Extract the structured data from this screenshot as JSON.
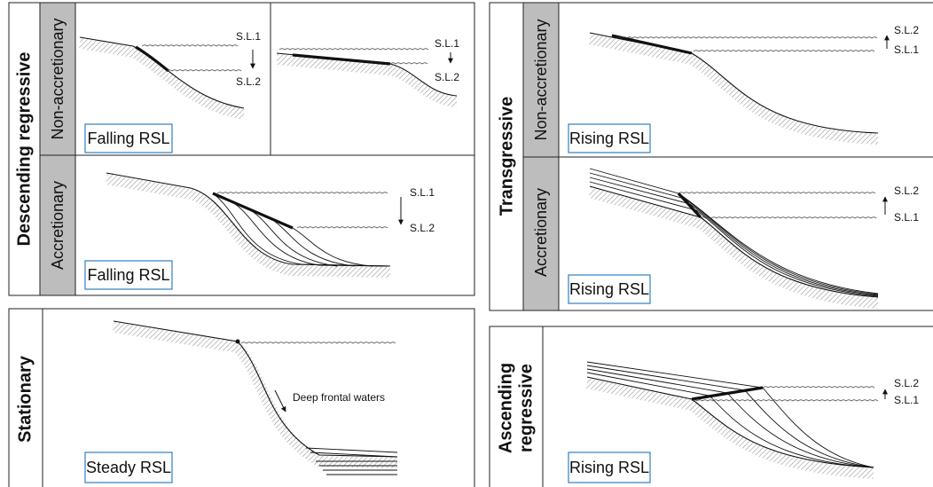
{
  "descending": {
    "title": "Descending regressive",
    "non_accretionary": {
      "label": "Non-accretionary",
      "badge": "Falling RSL",
      "left_sl": [
        "S.L.1",
        "S.L.2"
      ],
      "right_sl": [
        "S.L.1",
        "S.L.2"
      ]
    },
    "accretionary": {
      "label": "Accretionary",
      "badge": "Falling RSL",
      "sl": [
        "S.L.1",
        "S.L.2"
      ]
    }
  },
  "stationary": {
    "title": "Stationary",
    "badge": "Steady RSL",
    "note": "Deep frontal waters"
  },
  "transgressive": {
    "title": "Transgressive",
    "non_accretionary": {
      "label": "Non-accretionary",
      "badge": "Rising RSL",
      "sl": [
        "S.L.2",
        "S.L.1"
      ]
    },
    "accretionary": {
      "label": "Accretionary",
      "badge": "Rising RSL",
      "sl": [
        "S.L.2",
        "S.L.1"
      ]
    }
  },
  "ascending": {
    "title": [
      "Ascending",
      "regressive"
    ],
    "badge": "Rising RSL",
    "sl": [
      "S.L.2",
      "S.L.1"
    ]
  }
}
